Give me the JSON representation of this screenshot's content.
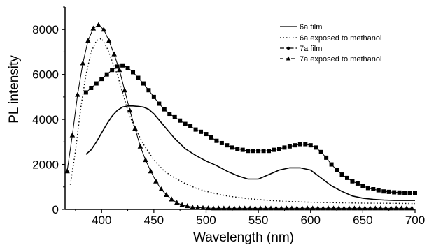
{
  "chart_data": {
    "type": "line",
    "title": "",
    "xlabel": "Wavelength (nm)",
    "ylabel": "PL intensity",
    "xlim": [
      365,
      700
    ],
    "ylim": [
      0,
      9000
    ],
    "xticks": [
      400,
      450,
      500,
      550,
      600,
      650,
      700
    ],
    "yticks": [
      0,
      2000,
      4000,
      6000,
      8000
    ],
    "grid": false,
    "legend_position": "top-right",
    "series": [
      {
        "name": "6a film",
        "style": "solid",
        "marker": "none",
        "x": [
          385,
          390,
          395,
          400,
          405,
          410,
          415,
          420,
          425,
          430,
          435,
          440,
          445,
          450,
          460,
          470,
          480,
          490,
          500,
          510,
          520,
          530,
          540,
          550,
          560,
          570,
          580,
          590,
          600,
          610,
          620,
          630,
          640,
          650,
          660,
          670,
          680,
          690,
          700
        ],
        "values": [
          2450,
          2650,
          3000,
          3400,
          3800,
          4150,
          4400,
          4550,
          4600,
          4600,
          4580,
          4550,
          4450,
          4250,
          3700,
          3150,
          2700,
          2400,
          2150,
          1950,
          1700,
          1500,
          1350,
          1350,
          1550,
          1750,
          1850,
          1850,
          1750,
          1400,
          1050,
          800,
          600,
          500,
          450,
          420,
          400,
          400,
          400
        ]
      },
      {
        "name": "6a exposed to methanol",
        "style": "dotted",
        "marker": "none",
        "x": [
          370,
          375,
          380,
          385,
          390,
          395,
          400,
          405,
          410,
          415,
          420,
          425,
          430,
          440,
          450,
          460,
          470,
          480,
          490,
          500,
          520,
          540,
          560,
          580,
          600,
          620,
          650,
          680,
          700
        ],
        "values": [
          1100,
          2600,
          4500,
          6000,
          7000,
          7500,
          7600,
          7200,
          6600,
          6000,
          5200,
          4400,
          3800,
          2900,
          2200,
          1700,
          1400,
          1150,
          950,
          800,
          600,
          480,
          400,
          350,
          320,
          300,
          280,
          270,
          260
        ]
      },
      {
        "name": "7a film",
        "style": "dash-dot",
        "marker": "square",
        "x": [
          385,
          390,
          395,
          400,
          405,
          410,
          415,
          420,
          425,
          430,
          435,
          440,
          445,
          450,
          455,
          460,
          465,
          470,
          475,
          480,
          485,
          490,
          495,
          500,
          505,
          510,
          515,
          520,
          525,
          530,
          535,
          540,
          545,
          550,
          555,
          560,
          565,
          570,
          575,
          580,
          585,
          590,
          595,
          600,
          605,
          610,
          615,
          620,
          625,
          630,
          635,
          640,
          645,
          650,
          655,
          660,
          665,
          670,
          675,
          680,
          685,
          690,
          695,
          700
        ],
        "values": [
          5200,
          5400,
          5600,
          5800,
          6000,
          6200,
          6350,
          6400,
          6300,
          6100,
          5850,
          5600,
          5300,
          5000,
          4700,
          4450,
          4250,
          4100,
          3950,
          3800,
          3700,
          3550,
          3450,
          3350,
          3200,
          3050,
          2950,
          2850,
          2750,
          2700,
          2650,
          2600,
          2600,
          2600,
          2600,
          2600,
          2650,
          2700,
          2750,
          2800,
          2850,
          2900,
          2900,
          2850,
          2750,
          2550,
          2300,
          2000,
          1750,
          1550,
          1400,
          1250,
          1150,
          1050,
          950,
          900,
          850,
          800,
          780,
          760,
          750,
          740,
          730,
          720
        ]
      },
      {
        "name": "7a exposed to methanol",
        "style": "dashed",
        "marker": "triangle",
        "x": [
          367,
          372,
          377,
          382,
          387,
          392,
          397,
          402,
          407,
          412,
          417,
          422,
          427,
          432,
          437,
          442,
          447,
          452,
          457,
          462,
          467,
          472,
          477,
          482,
          487,
          492,
          497,
          502,
          507,
          512,
          517,
          522,
          527,
          532,
          537,
          542,
          547,
          552,
          557,
          562,
          567,
          572,
          577,
          582,
          587,
          592,
          597,
          602,
          607,
          612,
          617,
          622,
          627,
          632,
          637,
          642,
          647,
          652,
          657,
          662,
          667,
          672,
          677,
          682,
          687,
          692,
          697
        ],
        "values": [
          1700,
          3300,
          5100,
          6500,
          7500,
          8050,
          8200,
          8000,
          7500,
          6900,
          6200,
          5300,
          4400,
          3600,
          2800,
          2200,
          1700,
          1250,
          900,
          650,
          450,
          300,
          200,
          150,
          100,
          80,
          70,
          60,
          50,
          50,
          50,
          50,
          50,
          50,
          50,
          50,
          50,
          50,
          50,
          50,
          50,
          50,
          50,
          50,
          50,
          50,
          50,
          50,
          50,
          50,
          50,
          50,
          50,
          50,
          50,
          50,
          50,
          50,
          50,
          50,
          50,
          50,
          50,
          50,
          50,
          50,
          50
        ]
      }
    ]
  }
}
